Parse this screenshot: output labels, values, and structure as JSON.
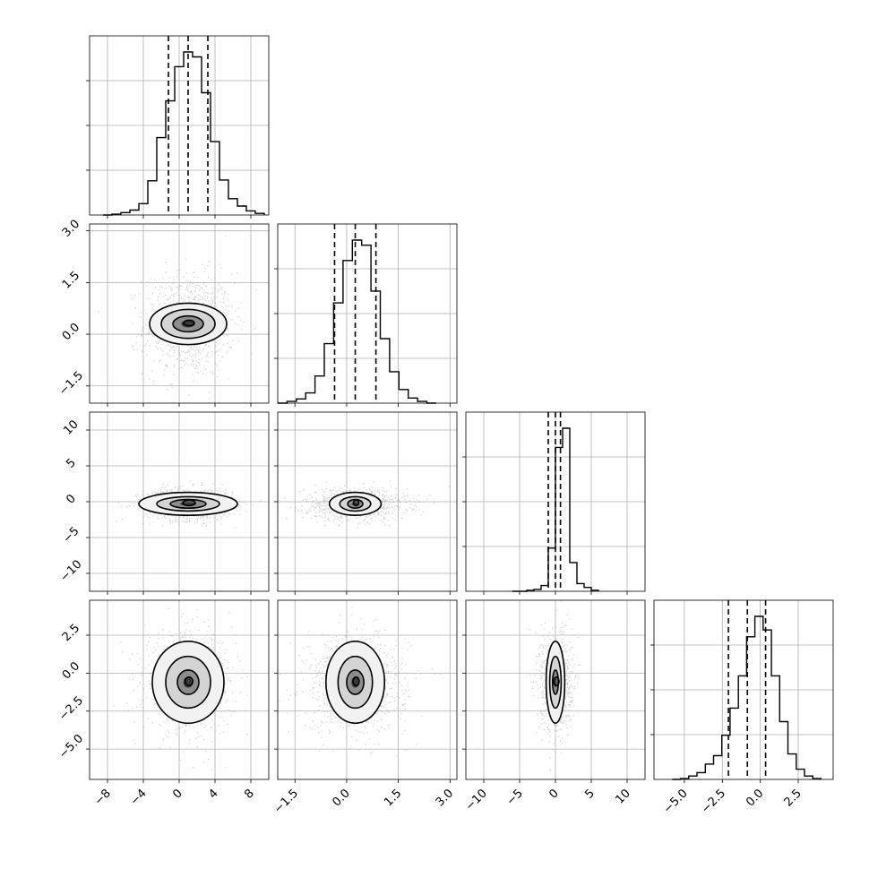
{
  "chart_data": {
    "type": "corner",
    "grid": true,
    "parameters": [
      {
        "id": "p0",
        "range": [
          -10,
          10
        ],
        "ticks": [
          -8,
          -4,
          0,
          4,
          8
        ],
        "tick_labels": [
          "−8",
          "−4",
          "0",
          "4",
          "8"
        ],
        "quantiles": [
          -1.2,
          1.0,
          3.2
        ],
        "mean": 1.0,
        "sd": 2.0,
        "hist_range": [
          -8.5,
          9.5
        ],
        "hist_counts": [
          0,
          1,
          3,
          6,
          14,
          42,
          95,
          140,
          182,
          200,
          194,
          150,
          90,
          43,
          20,
          11,
          5,
          2
        ]
      },
      {
        "id": "p1",
        "range": [
          -2.0,
          3.2
        ],
        "ticks": [
          -1.5,
          0.0,
          1.5,
          3.0
        ],
        "tick_labels": [
          "−1.5",
          "0.0",
          "1.5",
          "3.0"
        ],
        "quantiles": [
          -0.35,
          0.25,
          0.85
        ],
        "mean": 0.25,
        "sd": 0.6,
        "hist_range": [
          -2.0,
          2.6
        ],
        "hist_counts": [
          0,
          2,
          5,
          12,
          32,
          70,
          118,
          168,
          192,
          186,
          132,
          76,
          37,
          16,
          6,
          2,
          0
        ]
      },
      {
        "id": "p2",
        "range": [
          -12.5,
          12.5
        ],
        "ticks": [
          -10,
          -5,
          0,
          5,
          10
        ],
        "tick_labels": [
          "−10",
          "−5",
          "0",
          "5",
          "10"
        ],
        "quantiles": [
          -1.0,
          0.0,
          0.7
        ],
        "mean": 0.0,
        "sd": 0.9,
        "hist_range": [
          -6.0,
          6.0
        ],
        "hist_counts": [
          0,
          0,
          1,
          2,
          6,
          45,
          150,
          170,
          30,
          8,
          4,
          1
        ]
      },
      {
        "id": "p3",
        "range": [
          -7.0,
          4.8
        ],
        "ticks": [
          -5.0,
          -2.5,
          0.0,
          2.5
        ],
        "tick_labels": [
          "−5.0",
          "−2.5",
          "0.0",
          "2.5"
        ],
        "quantiles": [
          -2.1,
          -0.85,
          0.35
        ],
        "mean": -0.5,
        "sd": 1.3,
        "hist_range": [
          -5.8,
          4.0
        ],
        "hist_counts": [
          0,
          1,
          4,
          8,
          18,
          28,
          52,
          84,
          122,
          168,
          192,
          176,
          122,
          68,
          30,
          12,
          4,
          1
        ]
      }
    ],
    "pairs": [
      {
        "row": 1,
        "col": 0,
        "rx": [
          1.7,
          3.0,
          4.3
        ],
        "ry": [
          0.23,
          0.42,
          0.6
        ],
        "center": [
          1.0,
          0.3
        ]
      },
      {
        "row": 2,
        "col": 0,
        "rx": [
          2.0,
          3.5,
          5.5
        ],
        "ry": [
          0.6,
          1.0,
          1.6
        ],
        "center": [
          1.0,
          -0.3
        ]
      },
      {
        "row": 2,
        "col": 1,
        "rx": [
          0.22,
          0.45,
          0.75
        ],
        "ry": [
          0.6,
          1.0,
          1.6
        ],
        "center": [
          0.25,
          -0.3
        ]
      },
      {
        "row": 3,
        "col": 0,
        "rx": [
          1.2,
          2.5,
          4.0
        ],
        "ry": [
          0.8,
          1.7,
          2.7
        ],
        "center": [
          1.0,
          -0.6
        ]
      },
      {
        "row": 3,
        "col": 1,
        "rx": [
          0.25,
          0.5,
          0.85
        ],
        "ry": [
          0.8,
          1.7,
          2.7
        ],
        "center": [
          0.25,
          -0.6
        ]
      },
      {
        "row": 3,
        "col": 2,
        "rx": [
          0.4,
          0.8,
          1.3
        ],
        "ry": [
          0.8,
          1.7,
          2.7
        ],
        "center": [
          0.0,
          -0.6
        ]
      }
    ]
  }
}
